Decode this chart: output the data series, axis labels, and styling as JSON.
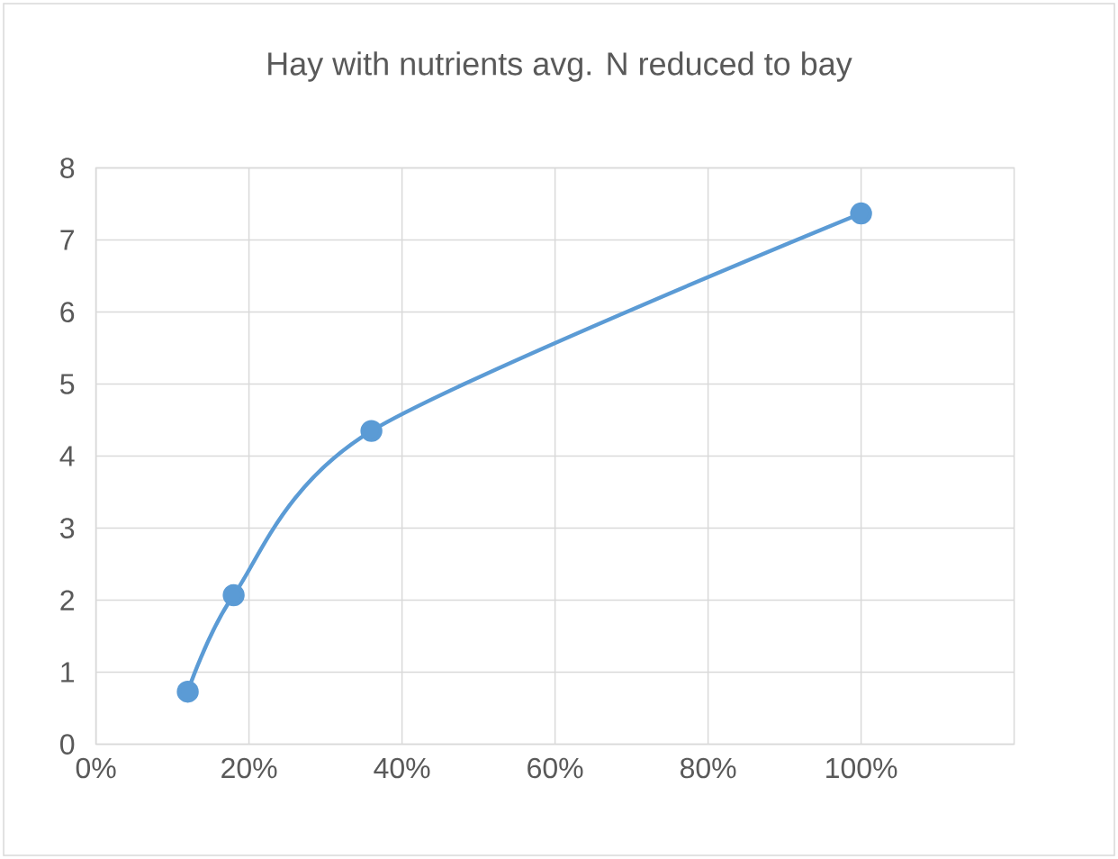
{
  "chart_data": {
    "type": "line",
    "title": "Hay with nutrients avg. N reduced to bay",
    "x": [
      12,
      18,
      36,
      100
    ],
    "series": [
      {
        "color": "#5b9bd5",
        "values": [
          0.73,
          2.07,
          4.35,
          7.37
        ]
      }
    ],
    "xlim": [
      0,
      120
    ],
    "xticks": [
      {
        "value": 0,
        "label": "0%"
      },
      {
        "value": 20,
        "label": "20%"
      },
      {
        "value": 40,
        "label": "40%"
      },
      {
        "value": 60,
        "label": "60%"
      },
      {
        "value": 80,
        "label": "80%"
      },
      {
        "value": 100,
        "label": "100%"
      }
    ],
    "ylim": [
      0,
      8
    ],
    "yticks": [
      0,
      1,
      2,
      3,
      4,
      5,
      6,
      7,
      8
    ],
    "grid": true,
    "marker": "circle",
    "line_style": "solid",
    "legend": false
  }
}
